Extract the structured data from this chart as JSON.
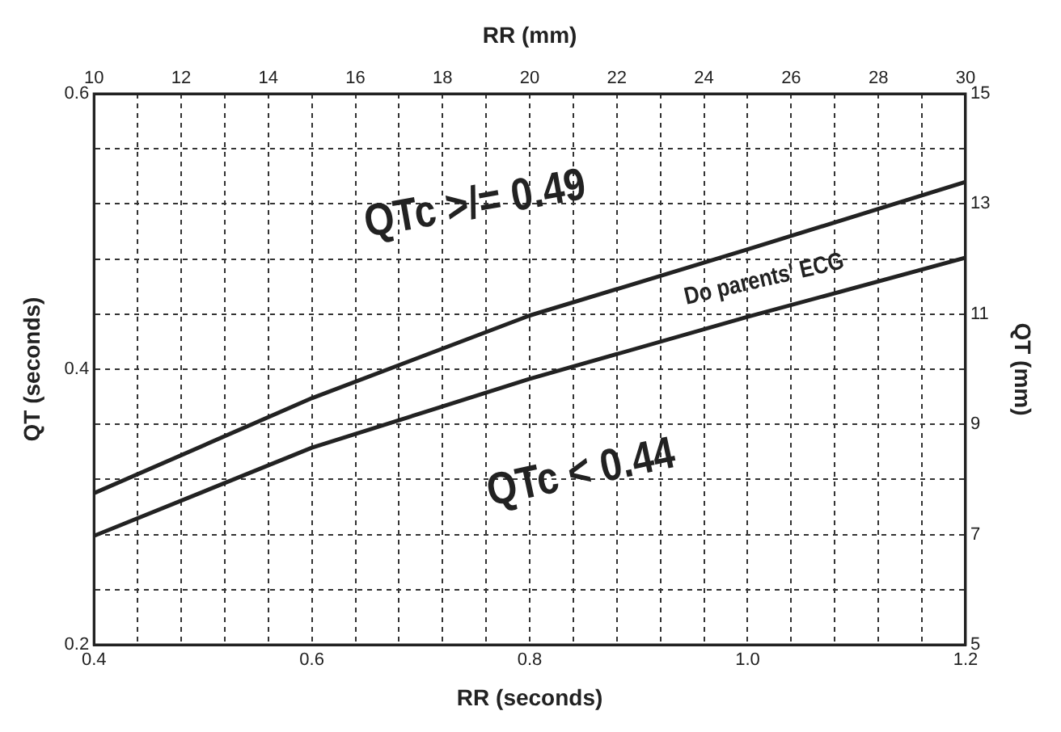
{
  "chart_data": {
    "type": "line",
    "xlabel": "RR (seconds)",
    "ylabel": "QT (seconds)",
    "x2label": "RR (mm)",
    "y2label": "QT (mm)",
    "xlim": [
      0.4,
      1.2
    ],
    "xticks": [
      0.4,
      {
        "value": 0.44,
        "label": null
      },
      {
        "value": 0.48,
        "label": null
      },
      {
        "value": 0.52,
        "label": null
      },
      {
        "value": 0.56,
        "label": null
      },
      0.6,
      {
        "value": 0.64,
        "label": null
      },
      {
        "value": 0.68,
        "label": null
      },
      {
        "value": 0.72,
        "label": null
      },
      {
        "value": 0.76,
        "label": null
      },
      0.8,
      {
        "value": 0.84,
        "label": null
      },
      {
        "value": 0.88,
        "label": null
      },
      {
        "value": 0.92,
        "label": null
      },
      {
        "value": 0.96,
        "label": null
      },
      {
        "value": 1.0,
        "label": "1.0"
      },
      {
        "value": 1.04,
        "label": null
      },
      {
        "value": 1.08,
        "label": null
      },
      {
        "value": 1.12,
        "label": null
      },
      {
        "value": 1.16,
        "label": null
      },
      1.2
    ],
    "ylim": [
      0.2,
      0.6
    ],
    "yticks": [
      0.2,
      {
        "value": 0.24,
        "label": null
      },
      {
        "value": 0.28,
        "label": null
      },
      {
        "value": 0.32,
        "label": null
      },
      {
        "value": 0.36,
        "label": null
      },
      0.4,
      {
        "value": 0.44,
        "label": null
      },
      {
        "value": 0.48,
        "label": null
      },
      {
        "value": 0.52,
        "label": null
      },
      {
        "value": 0.56,
        "label": null
      },
      0.6
    ],
    "x2lim": [
      10,
      30
    ],
    "x2ticks": [
      10,
      12,
      14,
      16,
      18,
      20,
      22,
      24,
      26,
      28,
      30
    ],
    "y2lim": [
      5,
      15
    ],
    "y2ticks": [
      5,
      7,
      9,
      11,
      13,
      15
    ],
    "x": [
      0.4,
      0.6,
      0.8,
      1.0,
      1.2
    ],
    "series": [
      {
        "color": "#222222",
        "values": [
          0.31,
          0.379,
          0.439,
          0.487,
          0.536
        ]
      },
      {
        "color": "#222222",
        "values": [
          0.279,
          0.343,
          0.393,
          0.438,
          0.481
        ]
      }
    ],
    "annotations": [
      "QTc >/= 0.49",
      "QTc < 0.44",
      "Do parents' ECG"
    ],
    "grid": true,
    "legend": false,
    "marker": "none",
    "line_style": "solid"
  }
}
